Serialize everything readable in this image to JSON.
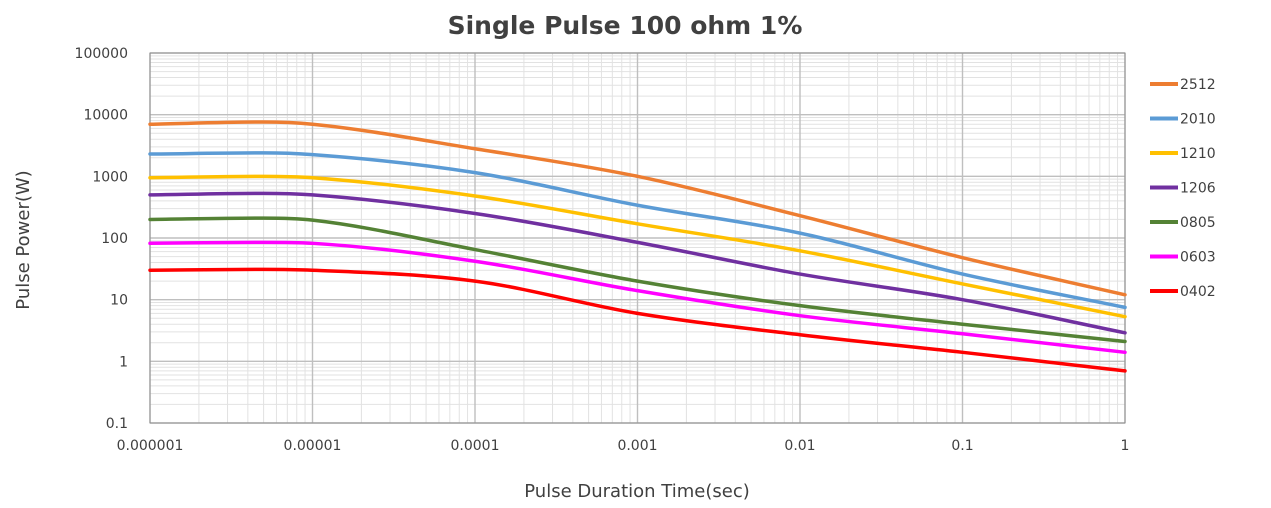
{
  "chart_data": {
    "type": "line",
    "title": "Single Pulse 100 ohm 1%",
    "xlabel": "Pulse Duration  Time(sec)",
    "ylabel": "Pulse Power(W)",
    "xscale": "log",
    "yscale": "log",
    "xlim": [
      1e-06,
      1
    ],
    "ylim": [
      0.1,
      100000
    ],
    "grid": true,
    "legend": "right",
    "x_ticks": [
      "0.000001",
      "0.00001",
      "0.0001",
      "0.001",
      "0.01",
      "0.1",
      "1"
    ],
    "y_ticks": [
      "0.1",
      "1",
      "10",
      "100",
      "1000",
      "10000",
      "100000"
    ],
    "x": [
      1e-06,
      5e-06,
      1e-05,
      0.0001,
      0.001,
      0.01,
      0.1,
      1
    ],
    "series": [
      {
        "name": "2512",
        "color": "#ED7D31",
        "values": [
          7000,
          7600,
          7000,
          2800,
          1000,
          230,
          48,
          12
        ]
      },
      {
        "name": "2010",
        "color": "#5B9BD5",
        "values": [
          2300,
          2400,
          2250,
          1150,
          340,
          120,
          26,
          7.5
        ]
      },
      {
        "name": "1210",
        "color": "#FFC000",
        "values": [
          950,
          1000,
          950,
          480,
          170,
          62,
          18,
          5.3
        ]
      },
      {
        "name": "1206",
        "color": "#7030A0",
        "values": [
          500,
          530,
          500,
          250,
          85,
          26,
          10,
          2.9
        ]
      },
      {
        "name": "0805",
        "color": "#548235",
        "values": [
          200,
          210,
          195,
          65,
          20,
          8,
          4,
          2.1
        ]
      },
      {
        "name": "0603",
        "color": "#FF00FF",
        "values": [
          82,
          85,
          82,
          42,
          14,
          5.5,
          2.8,
          1.4
        ]
      },
      {
        "name": "0402",
        "color": "#FF0000",
        "values": [
          30,
          31,
          30,
          20,
          6,
          2.7,
          1.4,
          0.7
        ]
      }
    ]
  }
}
